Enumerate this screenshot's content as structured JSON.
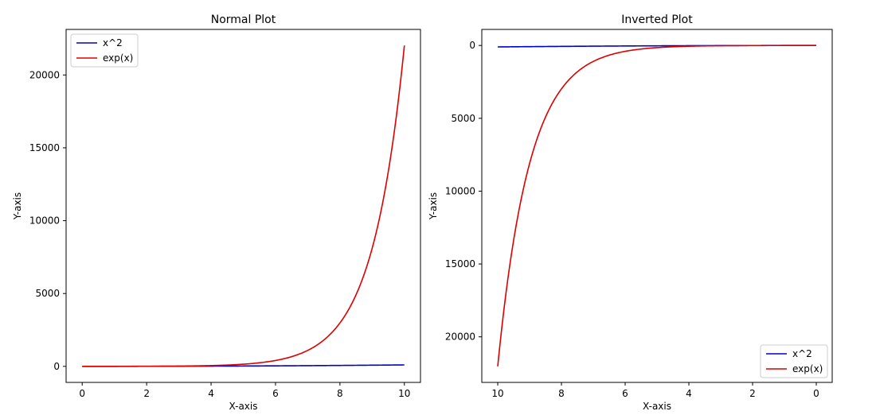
{
  "chart_data": [
    {
      "type": "line",
      "title": "Normal Plot",
      "xlabel": "X-axis",
      "ylabel": "Y-axis",
      "xlim": [
        -0.5,
        10.5
      ],
      "ylim": [
        -1101.2,
        23127.7
      ],
      "x_inverted": false,
      "y_inverted": false,
      "x_ticks": [
        0,
        2,
        4,
        6,
        8,
        10
      ],
      "y_ticks": [
        0,
        5000,
        10000,
        15000,
        20000
      ],
      "legend_position": "top-left",
      "grid": false,
      "series": [
        {
          "name": "x^2",
          "function": "x^2",
          "x_range": [
            0,
            10
          ],
          "color": "#0000cc"
        },
        {
          "name": "exp(x)",
          "function": "exp(x)",
          "x_range": [
            0,
            10
          ],
          "color": "#dd0000"
        }
      ]
    },
    {
      "type": "line",
      "title": "Inverted Plot",
      "xlabel": "X-axis",
      "ylabel": "Y-axis",
      "xlim": [
        10.5,
        -0.5
      ],
      "ylim": [
        23127.7,
        -1101.2
      ],
      "x_inverted": true,
      "y_inverted": true,
      "x_ticks": [
        10,
        8,
        6,
        4,
        2,
        0
      ],
      "y_ticks": [
        0,
        5000,
        10000,
        15000,
        20000
      ],
      "legend_position": "bottom-right",
      "grid": false,
      "series": [
        {
          "name": "x^2",
          "function": "x^2",
          "x_range": [
            0,
            10
          ],
          "color": "#0000cc"
        },
        {
          "name": "exp(x)",
          "function": "exp(x)",
          "x_range": [
            0,
            10
          ],
          "color": "#dd0000"
        }
      ]
    }
  ]
}
